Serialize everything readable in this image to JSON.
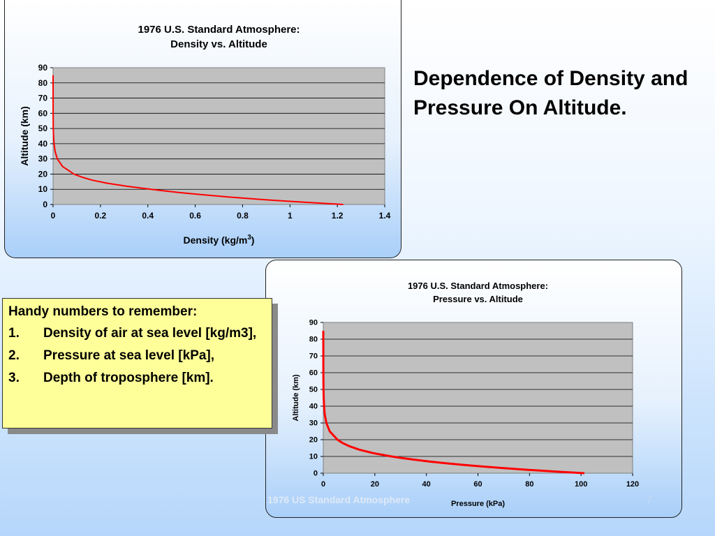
{
  "slide": {
    "title": "Dependence of Density and Pressure On Altitude.",
    "footer": "1976 US Standard Atmosphere",
    "page_number": "7"
  },
  "note": {
    "heading": "Handy numbers to remember:",
    "items": [
      {
        "num": "1.",
        "text": "Density of air at sea level [kg/m3],"
      },
      {
        "num": "2.",
        "text": "Pressure at sea level [kPa],"
      },
      {
        "num": "3.",
        "text": "Depth of troposphere [km]."
      }
    ]
  },
  "colors": {
    "line": "#ff0000",
    "plot_bg": "#c0c0c0",
    "note_bg": "#ffff99"
  },
  "chart_data": [
    {
      "type": "line",
      "title": "1976 U.S. Standard Atmosphere:",
      "subtitle": "Density vs. Altitude",
      "xlabel": "Density (kg/m3)",
      "ylabel": "Altitude (km)",
      "xlim": [
        0,
        1.4
      ],
      "ylim": [
        0,
        90
      ],
      "xticks": [
        0,
        0.2,
        0.4,
        0.6,
        0.8,
        1,
        1.2,
        1.4
      ],
      "yticks": [
        0,
        10,
        20,
        30,
        40,
        50,
        60,
        70,
        80,
        90
      ],
      "grid": true,
      "x": [
        1.225,
        1.112,
        1.007,
        0.909,
        0.819,
        0.736,
        0.66,
        0.59,
        0.526,
        0.467,
        0.414,
        0.312,
        0.228,
        0.166,
        0.122,
        0.088,
        0.04,
        0.018,
        0.0085,
        0.004,
        0.002,
        0.001,
        0.0003,
        0.0
      ],
      "y": [
        0,
        1,
        2,
        3,
        4,
        5,
        6,
        7,
        8,
        9,
        10,
        12,
        14,
        16,
        18,
        20,
        25,
        30,
        35,
        40,
        45,
        50,
        60,
        85
      ]
    },
    {
      "type": "line",
      "title": "1976 U.S. Standard Atmosphere:",
      "subtitle": "Pressure vs.  Altitude",
      "xlabel": "Pressure (kPa)",
      "ylabel": "Altitude (km)",
      "xlim": [
        0,
        120
      ],
      "ylim": [
        0,
        90
      ],
      "xticks": [
        0,
        20,
        40,
        60,
        80,
        100,
        120
      ],
      "yticks": [
        0,
        10,
        20,
        30,
        40,
        50,
        60,
        70,
        80,
        90
      ],
      "grid": true,
      "x": [
        101.3,
        89.9,
        79.5,
        70.1,
        61.6,
        54.0,
        47.2,
        41.1,
        35.6,
        30.7,
        26.4,
        19.3,
        14.1,
        10.3,
        7.5,
        5.5,
        2.5,
        1.2,
        0.56,
        0.29,
        0.15,
        0.08,
        0.02,
        0.0
      ],
      "y": [
        0,
        1,
        2,
        3,
        4,
        5,
        6,
        7,
        8,
        9,
        10,
        12,
        14,
        16,
        18,
        20,
        25,
        30,
        35,
        40,
        45,
        50,
        60,
        85
      ]
    }
  ]
}
